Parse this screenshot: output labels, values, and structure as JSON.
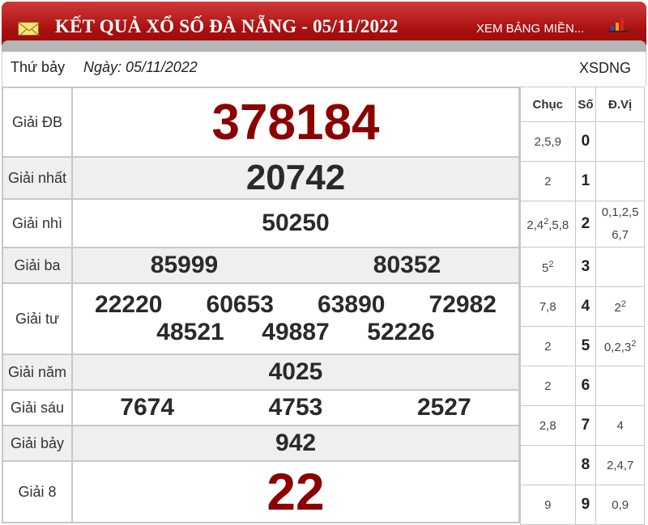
{
  "header": {
    "title": "KẾT QUẢ XỔ SỐ ĐÀ NẴNG - 05/11/2022",
    "link": "XEM BẢNG MIỀN...",
    "icons": [
      "mail-icon",
      "bar-chart-icon"
    ],
    "color": "#a80f0f"
  },
  "info": {
    "day": "Thứ bảy",
    "date": "Ngày: 05/11/2022",
    "code": "XSDNG"
  },
  "prizes": [
    {
      "label": "Giải ĐB",
      "numbers": [
        "378184"
      ]
    },
    {
      "label": "Giải nhất",
      "numbers": [
        "20742"
      ]
    },
    {
      "label": "Giải nhì",
      "numbers": [
        "50250"
      ]
    },
    {
      "label": "Giải ba",
      "numbers": [
        "85999",
        "80352"
      ]
    },
    {
      "label": "Giải tư",
      "numbers": [
        "22220",
        "60653",
        "63890",
        "72982",
        "48521",
        "49887",
        "52226"
      ]
    },
    {
      "label": "Giải năm",
      "numbers": [
        "4025"
      ]
    },
    {
      "label": "Giải sáu",
      "numbers": [
        "7674",
        "4753",
        "2527"
      ]
    },
    {
      "label": "Giải bảy",
      "numbers": [
        "942"
      ]
    },
    {
      "label": "Giải 8",
      "numbers": [
        "22"
      ]
    }
  ],
  "special_color": "#8b0000",
  "loto": {
    "headers": [
      "Chục",
      "Số",
      "Đ.Vị"
    ],
    "rows": [
      {
        "chuc": [
          {
            "t": "2,5,9"
          }
        ],
        "so": "0",
        "dv": []
      },
      {
        "chuc": [
          {
            "t": "2"
          }
        ],
        "so": "1",
        "dv": []
      },
      {
        "chuc": [
          {
            "t": "2,4",
            "sup": "2"
          },
          {
            "t": ",5,8"
          }
        ],
        "so": "2",
        "dv": [
          {
            "t": "0,1,2,5"
          },
          {
            "br": true
          },
          {
            "t": "6,7"
          }
        ]
      },
      {
        "chuc": [
          {
            "t": "5",
            "sup": "2"
          }
        ],
        "so": "3",
        "dv": []
      },
      {
        "chuc": [
          {
            "t": "7,8"
          }
        ],
        "so": "4",
        "dv": [
          {
            "t": "2",
            "sup": "2"
          }
        ]
      },
      {
        "chuc": [
          {
            "t": "2"
          }
        ],
        "so": "5",
        "dv": [
          {
            "t": "0,2,3",
            "sup": "2"
          }
        ]
      },
      {
        "chuc": [
          {
            "t": "2"
          }
        ],
        "so": "6",
        "dv": []
      },
      {
        "chuc": [
          {
            "t": "2,8"
          }
        ],
        "so": "7",
        "dv": [
          {
            "t": "4"
          }
        ]
      },
      {
        "chuc": [],
        "so": "8",
        "dv": [
          {
            "t": "2,4,7"
          }
        ]
      },
      {
        "chuc": [
          {
            "t": "9"
          }
        ],
        "so": "9",
        "dv": [
          {
            "t": "0,9"
          }
        ]
      }
    ]
  }
}
